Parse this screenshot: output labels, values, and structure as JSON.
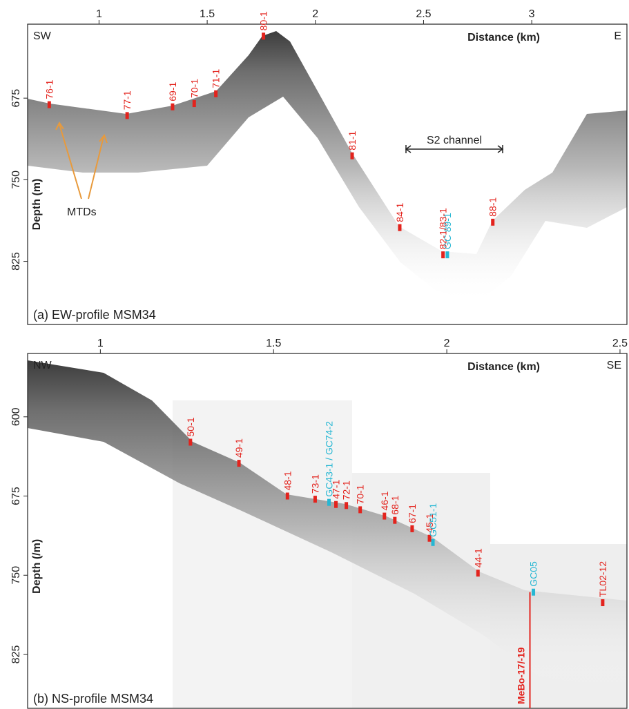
{
  "chart_data": [
    {
      "type": "profile",
      "title": "(a) EW-profile MSM34",
      "left_end": "SW",
      "right_end": "E",
      "xlabel": "Distance (km)",
      "ylabel": "Depth (m)",
      "xlim": [
        0.67,
        3.44
      ],
      "xticks": [
        1,
        1.5,
        2,
        2.5,
        3
      ],
      "ylim": [
        607,
        883
      ],
      "yticks": [
        675,
        750,
        825
      ],
      "annotations": [
        "S2 channel",
        "MTDs"
      ],
      "stations": [
        {
          "label": "76-1",
          "x": 0.77,
          "depth": 681,
          "color": "#e3231d"
        },
        {
          "label": "77-1",
          "x": 1.13,
          "depth": 691,
          "color": "#e3231d"
        },
        {
          "label": "69-1",
          "x": 1.34,
          "depth": 683,
          "color": "#e3231d"
        },
        {
          "label": "70-1",
          "x": 1.44,
          "depth": 680,
          "color": "#e3231d"
        },
        {
          "label": "71-1",
          "x": 1.54,
          "depth": 671,
          "color": "#e3231d"
        },
        {
          "label": "80-1",
          "x": 1.76,
          "depth": 618,
          "color": "#e3231d"
        },
        {
          "label": "81-1",
          "x": 2.17,
          "depth": 728,
          "color": "#e3231d"
        },
        {
          "label": "84-1",
          "x": 2.39,
          "depth": 794,
          "color": "#e3231d"
        },
        {
          "label": "82-1/83-1",
          "x": 2.59,
          "depth": 819,
          "color": "#e3231d"
        },
        {
          "label": "GC 89-1",
          "x": 2.61,
          "depth": 819,
          "color": "#27b7d3"
        },
        {
          "label": "88-1",
          "x": 2.82,
          "depth": 789,
          "color": "#e3231d"
        }
      ]
    },
    {
      "type": "profile",
      "title": "(b) NS-profile MSM34",
      "left_end": "NW",
      "right_end": "SE",
      "xlabel": "Distance (km)",
      "ylabel": "Depth (/m)",
      "xlim": [
        0.79,
        2.52
      ],
      "xticks": [
        1,
        1.5,
        2,
        2.5
      ],
      "ylim": [
        540,
        876
      ],
      "yticks": [
        600,
        675,
        750,
        825
      ],
      "stations": [
        {
          "label": "50-1",
          "x": 1.26,
          "depth": 624,
          "color": "#e3231d"
        },
        {
          "label": "49-1",
          "x": 1.4,
          "depth": 644,
          "color": "#e3231d"
        },
        {
          "label": "48-1",
          "x": 1.54,
          "depth": 675,
          "color": "#e3231d"
        },
        {
          "label": "73-1",
          "x": 1.62,
          "depth": 678,
          "color": "#e3231d"
        },
        {
          "label": "GC43-1 / GC74-2",
          "x": 1.66,
          "depth": 681,
          "color": "#27b7d3"
        },
        {
          "label": "47-1",
          "x": 1.68,
          "depth": 683,
          "color": "#e3231d"
        },
        {
          "label": "72-1",
          "x": 1.71,
          "depth": 684,
          "color": "#e3231d"
        },
        {
          "label": "70-1",
          "x": 1.75,
          "depth": 688,
          "color": "#e3231d"
        },
        {
          "label": "46-1",
          "x": 1.82,
          "depth": 694,
          "color": "#e3231d"
        },
        {
          "label": "68-1",
          "x": 1.85,
          "depth": 698,
          "color": "#e3231d"
        },
        {
          "label": "67-1",
          "x": 1.9,
          "depth": 706,
          "color": "#e3231d"
        },
        {
          "label": "45-1",
          "x": 1.95,
          "depth": 715,
          "color": "#e3231d"
        },
        {
          "label": "GC51-1",
          "x": 1.96,
          "depth": 719,
          "color": "#27b7d3"
        },
        {
          "label": "44-1",
          "x": 2.09,
          "depth": 748,
          "color": "#e3231d"
        },
        {
          "label": "GC05",
          "x": 2.25,
          "depth": 766,
          "color": "#27b7d3"
        },
        {
          "label": "MeBo-17/-19",
          "x": 2.24,
          "depth": 766,
          "color": "#e3231d",
          "style": "borehole"
        },
        {
          "label": "TL02-12",
          "x": 2.45,
          "depth": 776,
          "color": "#e3231d"
        }
      ]
    }
  ]
}
